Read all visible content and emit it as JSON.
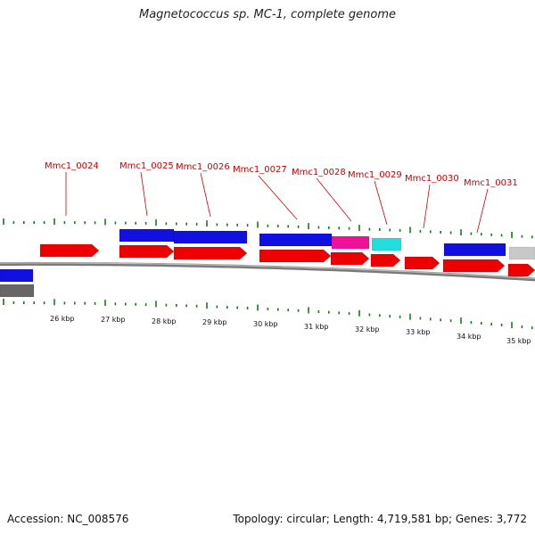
{
  "title": "Magnetococcus sp. MC-1, complete genome",
  "accession": "Accession: NC_008576",
  "topology": "Topology: circular; Length: 4,719,581 bp; Genes: 3,772",
  "colors": {
    "backbone": "#7a7a7a",
    "tick": "#1a7a1a",
    "label": "#cc0000",
    "leader": "#cc0000",
    "forward_feature": "#1010e0",
    "gene_red": "#ee0000",
    "pink": "#ee1199",
    "cyan": "#22dddd",
    "grey_light": "#c8c8c8",
    "grey_dark": "#666666"
  },
  "gene_labels": [
    {
      "id": "Mmc1_0024"
    },
    {
      "id": "Mmc1_0025"
    },
    {
      "id": "Mmc1_0026"
    },
    {
      "id": "Mmc1_0027"
    },
    {
      "id": "Mmc1_0028"
    },
    {
      "id": "Mmc1_0029"
    },
    {
      "id": "Mmc1_0030"
    },
    {
      "id": "Mmc1_0031"
    }
  ],
  "scale_labels": [
    "26 kbp",
    "27 kbp",
    "28 kbp",
    "29 kbp",
    "30 kbp",
    "31 kbp",
    "32 kbp",
    "33 kbp",
    "34 kbp",
    "35 kbp"
  ]
}
